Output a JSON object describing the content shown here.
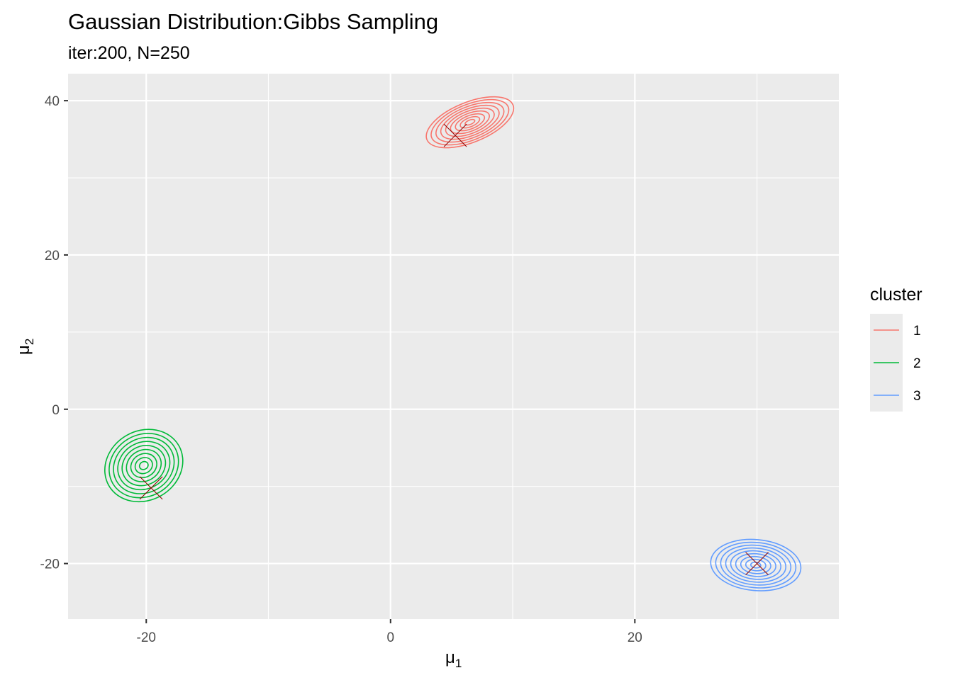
{
  "chart_data": {
    "type": "contour",
    "title": "Gaussian Distribution:Gibbs Sampling",
    "subtitle": "iter:200, N=250",
    "xlabel": "μ",
    "xlabel_sub": "1",
    "ylabel": "μ",
    "ylabel_sub": "2",
    "xlim": [
      -26.4,
      36.7
    ],
    "ylim": [
      -27.2,
      43.5
    ],
    "x_ticks": [
      -20,
      0,
      20
    ],
    "x_tick_labels": [
      "-20",
      "0",
      "20"
    ],
    "y_ticks": [
      -20,
      0,
      20,
      40
    ],
    "y_tick_labels": [
      "-20",
      "0",
      "20",
      "40"
    ],
    "grid": true,
    "legend": {
      "title": "cluster",
      "position": "right",
      "entries": [
        "1",
        "2",
        "3"
      ]
    },
    "series": [
      {
        "name": "1",
        "color": "#F8766D",
        "center": [
          6.5,
          37.2
        ],
        "level_count": 9,
        "outer_radii": [
          3.8,
          2.6
        ],
        "rotation_deg": 22,
        "true_mean": [
          5.3,
          35.5
        ]
      },
      {
        "name": "2",
        "color": "#00BA38",
        "center": [
          -20.2,
          -7.3
        ],
        "level_count": 9,
        "outer_radii": [
          3.3,
          4.5
        ],
        "rotation_deg": 30,
        "true_mean": [
          -19.6,
          -10.2
        ]
      },
      {
        "name": "3",
        "color": "#619CFF",
        "center": [
          29.9,
          -20.2
        ],
        "level_count": 9,
        "outer_radii": [
          3.7,
          3.3
        ],
        "rotation_deg": -5,
        "true_mean": [
          30.0,
          -20.0
        ]
      }
    ],
    "true_mean_marker": {
      "shape": "x",
      "color": "#8B0000"
    }
  }
}
